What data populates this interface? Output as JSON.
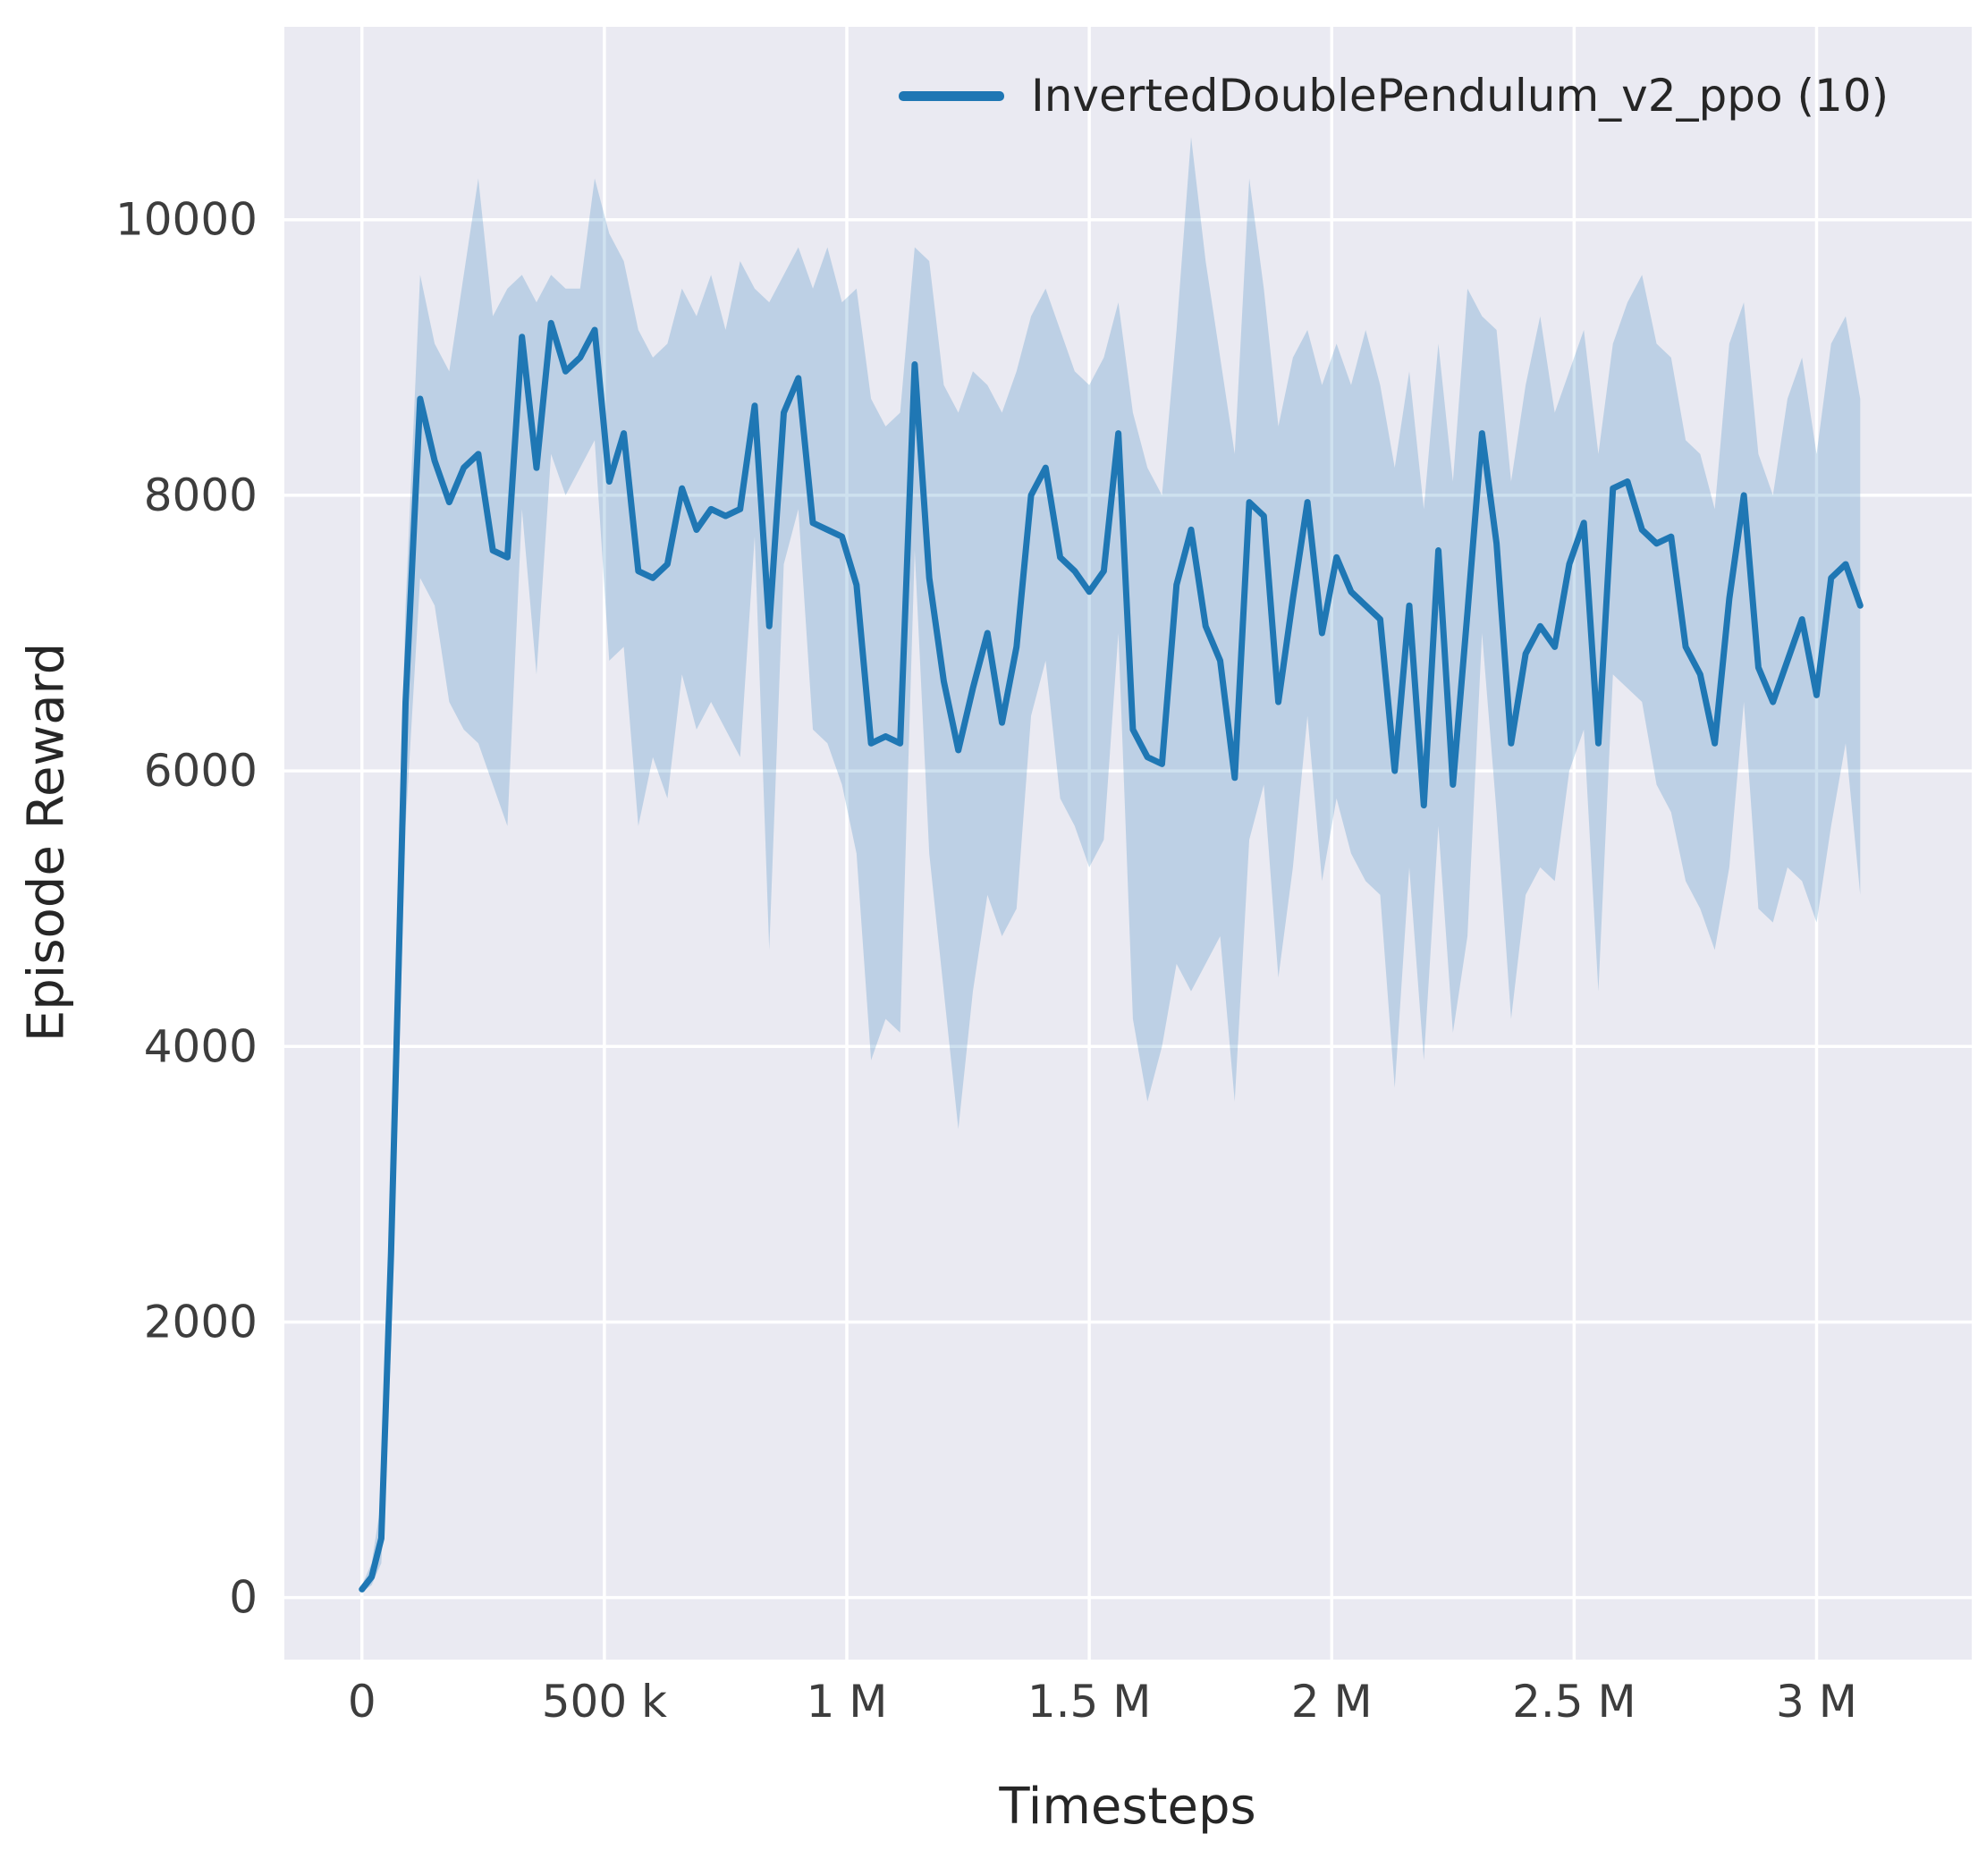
{
  "chart_data": {
    "type": "line",
    "title": "",
    "xlabel": "Timesteps",
    "ylabel": "Episode Reward",
    "grid": true,
    "panel_background": "#eaeaf2",
    "grid_color": "#ffffff",
    "tick_color": "#3d3d3d",
    "legend_position": "upper right",
    "xlim": [
      -160000,
      3320000
    ],
    "ylim": [
      -450,
      11400
    ],
    "x_ticks": [
      {
        "value": 0,
        "label": "0"
      },
      {
        "value": 500000,
        "label": "500 k"
      },
      {
        "value": 1000000,
        "label": "1 M"
      },
      {
        "value": 1500000,
        "label": "1.5 M"
      },
      {
        "value": 2000000,
        "label": "2 M"
      },
      {
        "value": 2500000,
        "label": "2.5 M"
      },
      {
        "value": 3000000,
        "label": "3 M"
      }
    ],
    "y_ticks": [
      {
        "value": 0,
        "label": "0"
      },
      {
        "value": 2000,
        "label": "2000"
      },
      {
        "value": 4000,
        "label": "4000"
      },
      {
        "value": 6000,
        "label": "6000"
      },
      {
        "value": 8000,
        "label": "8000"
      },
      {
        "value": 10000,
        "label": "10000"
      }
    ],
    "series": [
      {
        "name": "InvertedDoublePendulum_v2_ppo (10)",
        "color": "#1f77b4",
        "band_opacity": 0.22,
        "x": [
          0,
          20000,
          40000,
          60000,
          90000,
          120000,
          150000,
          180000,
          210000,
          240000,
          270000,
          300000,
          330000,
          360000,
          390000,
          420000,
          450000,
          480000,
          510000,
          540000,
          570000,
          600000,
          630000,
          660000,
          690000,
          720000,
          750000,
          780000,
          810000,
          840000,
          870000,
          900000,
          930000,
          960000,
          990000,
          1020000,
          1050000,
          1080000,
          1110000,
          1140000,
          1170000,
          1200000,
          1230000,
          1260000,
          1290000,
          1320000,
          1350000,
          1380000,
          1410000,
          1440000,
          1470000,
          1500000,
          1530000,
          1560000,
          1590000,
          1620000,
          1650000,
          1680000,
          1710000,
          1740000,
          1770000,
          1800000,
          1830000,
          1860000,
          1890000,
          1920000,
          1950000,
          1980000,
          2010000,
          2040000,
          2070000,
          2100000,
          2130000,
          2160000,
          2190000,
          2220000,
          2250000,
          2280000,
          2310000,
          2340000,
          2370000,
          2400000,
          2430000,
          2460000,
          2490000,
          2520000,
          2550000,
          2580000,
          2610000,
          2640000,
          2670000,
          2700000,
          2730000,
          2760000,
          2790000,
          2820000,
          2850000,
          2880000,
          2910000,
          2940000,
          2970000,
          3000000,
          3030000,
          3060000,
          3090000
        ],
        "mean": [
          60,
          150,
          430,
          2500,
          6500,
          8700,
          8250,
          7950,
          8200,
          8300,
          7600,
          7550,
          9150,
          8200,
          9250,
          8900,
          9000,
          9200,
          8100,
          8450,
          7450,
          7400,
          7500,
          8050,
          7750,
          7900,
          7850,
          7900,
          8650,
          7050,
          8600,
          8850,
          7800,
          7750,
          7700,
          7350,
          6200,
          6250,
          6200,
          8950,
          7400,
          6650,
          6150,
          6600,
          7000,
          6350,
          6900,
          8000,
          8200,
          7550,
          7450,
          7300,
          7450,
          8450,
          6300,
          6100,
          6050,
          7350,
          7750,
          7050,
          6800,
          5950,
          7950,
          7850,
          6500,
          7250,
          7950,
          7000,
          7550,
          7300,
          7200,
          7100,
          6000,
          7200,
          5750,
          7600,
          5900,
          7150,
          8450,
          7650,
          6200,
          6850,
          7050,
          6900,
          7500,
          7800,
          6200,
          8050,
          8100,
          7750,
          7650,
          7700,
          6900,
          6700,
          6200,
          7250,
          8000,
          6750,
          6500,
          6800,
          7100,
          6550,
          7400,
          7500,
          7200
        ],
        "upper": [
          90,
          250,
          700,
          3200,
          7200,
          9600,
          9100,
          8900,
          9600,
          10300,
          9300,
          9500,
          9600,
          9400,
          9600,
          9500,
          9500,
          10300,
          9900,
          9700,
          9200,
          9000,
          9100,
          9500,
          9300,
          9600,
          9200,
          9700,
          9500,
          9400,
          9600,
          9800,
          9500,
          9800,
          9400,
          9500,
          8700,
          8500,
          8600,
          9800,
          9700,
          8800,
          8600,
          8900,
          8800,
          8600,
          8900,
          9300,
          9500,
          9200,
          8900,
          8800,
          9000,
          9400,
          8600,
          8200,
          8000,
          9200,
          10600,
          9700,
          9000,
          8300,
          10300,
          9500,
          8500,
          9000,
          9200,
          8800,
          9100,
          8800,
          9200,
          8800,
          8200,
          8900,
          7900,
          9100,
          8100,
          9500,
          9300,
          9200,
          8100,
          8800,
          9300,
          8600,
          8900,
          9200,
          8300,
          9100,
          9400,
          9600,
          9100,
          9000,
          8400,
          8300,
          7900,
          9100,
          9400,
          8300,
          8000,
          8700,
          9000,
          8300,
          9100,
          9300,
          8700
        ],
        "lower": [
          40,
          90,
          250,
          1800,
          5600,
          7400,
          7200,
          6500,
          6300,
          6200,
          5900,
          5600,
          7900,
          6700,
          8300,
          8000,
          8200,
          8400,
          6800,
          6900,
          5600,
          6100,
          5800,
          6700,
          6300,
          6500,
          6300,
          6100,
          7700,
          4700,
          7500,
          7900,
          6300,
          6200,
          5900,
          5400,
          3900,
          4200,
          4100,
          7600,
          5400,
          4400,
          3400,
          4400,
          5100,
          4800,
          5000,
          6400,
          6800,
          5800,
          5600,
          5300,
          5500,
          7000,
          4200,
          3600,
          4000,
          4600,
          4400,
          4600,
          4800,
          3600,
          5500,
          5900,
          4500,
          5300,
          6400,
          5200,
          5800,
          5400,
          5200,
          5100,
          3700,
          5300,
          3900,
          5600,
          4100,
          4800,
          7000,
          5700,
          4200,
          5100,
          5300,
          5200,
          6000,
          6300,
          4400,
          6700,
          6600,
          6500,
          5900,
          5700,
          5200,
          5000,
          4700,
          5300,
          6500,
          5000,
          4900,
          5300,
          5200,
          4900,
          5600,
          6200,
          5100
        ]
      }
    ]
  }
}
